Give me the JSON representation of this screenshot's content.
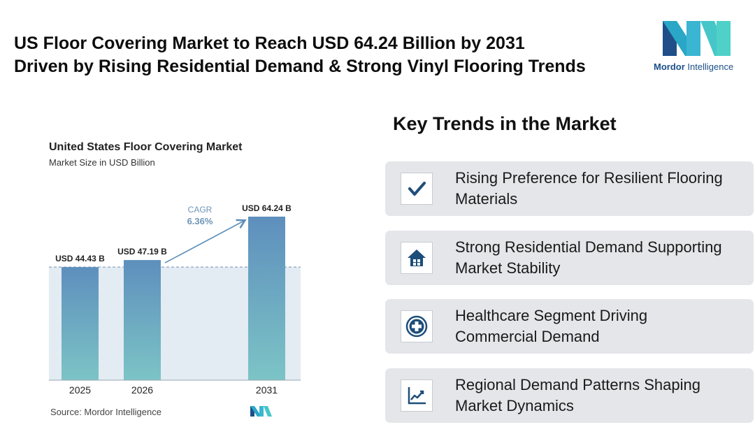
{
  "headline": {
    "line1": "US Floor Covering Market to Reach USD 64.24 Billion by 2031",
    "line2": "Driven by Rising Residential Demand & Strong Vinyl Flooring Trends"
  },
  "logo": {
    "word1": "Mordor",
    "word2": "Intelligence"
  },
  "chart_data": {
    "type": "bar",
    "title": "United States Floor Covering Market",
    "subtitle": "Market Size in USD Billion",
    "categories": [
      "2025",
      "2026",
      "2031"
    ],
    "values": [
      44.43,
      47.19,
      64.24
    ],
    "data_labels": [
      "USD 44.43 B",
      "USD 47.19 B",
      "USD 64.24 B"
    ],
    "cagr_label": "CAGR",
    "cagr_value": "6.36%",
    "ylim": [
      0,
      70
    ],
    "colors": {
      "bar_top": "#5e8fbd",
      "bar_bottom": "#7cc4c6",
      "band": "#e3ebf3",
      "arrow": "#5d8fb9"
    }
  },
  "source": "Source: Mordor Intelligence",
  "trends": {
    "title": "Key Trends in the Market",
    "items": [
      {
        "icon": "check-icon",
        "line1": "Rising Preference for Resilient Flooring",
        "line2": "Materials"
      },
      {
        "icon": "house-icon",
        "line1": "Strong Residential Demand Supporting",
        "line2": "Market Stability"
      },
      {
        "icon": "medical-cross-icon",
        "line1": "Healthcare Segment Driving",
        "line2": "Commercial Demand"
      },
      {
        "icon": "line-chart-icon",
        "line1": "Regional Demand Patterns Shaping",
        "line2": "Market Dynamics"
      }
    ]
  },
  "colors": {
    "accent": "#1d4e7a",
    "card": "#e4e6e9"
  }
}
